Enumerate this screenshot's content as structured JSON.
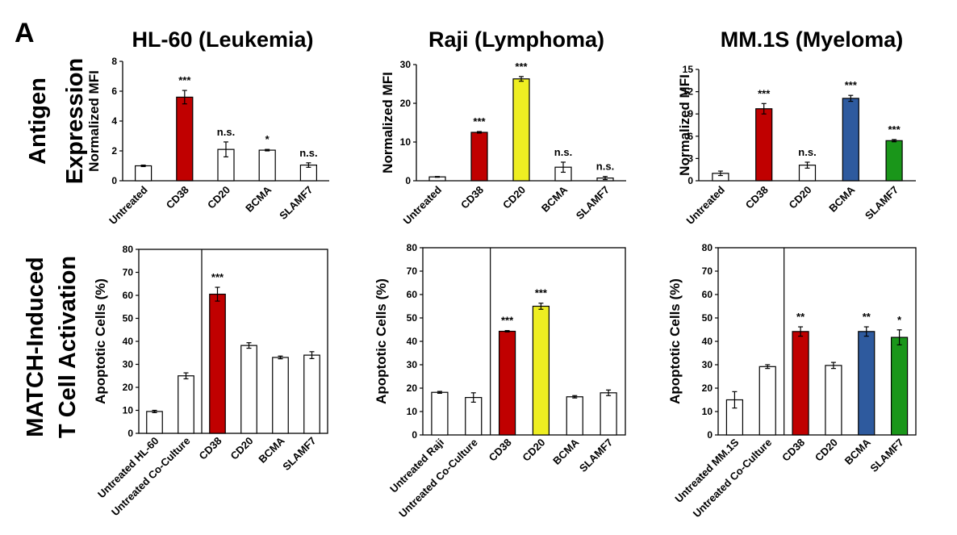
{
  "panel_label": "A",
  "row_labels": {
    "top": [
      "Antigen",
      "Expression"
    ],
    "bottom": [
      "MATCH-Induced",
      "T Cell Activation"
    ]
  },
  "column_titles": [
    "HL-60 (Leukemia)",
    "Raji (Lymphoma)",
    "MM.1S (Myeloma)"
  ],
  "colors": {
    "white": "#ffffff",
    "red": "#c00000",
    "yellow": "#eeee22",
    "blue": "#2e5a9e",
    "green": "#1a961a",
    "axis": "#000000"
  },
  "chart_data": [
    {
      "type": "bar",
      "title": "HL-60 (Leukemia)",
      "ylabel": "Normalized MFI",
      "ylim": [
        0,
        8
      ],
      "yticks": [
        0,
        2,
        4,
        6,
        8
      ],
      "categories": [
        "Untreated",
        "CD38",
        "CD20",
        "BCMA",
        "SLAMF7"
      ],
      "values": [
        1.0,
        5.6,
        2.1,
        2.05,
        1.05
      ],
      "errors": [
        0.05,
        0.45,
        0.5,
        0.05,
        0.15
      ],
      "significance": [
        "",
        "***",
        "n.s.",
        "*",
        "n.s."
      ],
      "bar_colors": [
        "white",
        "red",
        "white",
        "white",
        "white"
      ],
      "divider_after": null
    },
    {
      "type": "bar",
      "title": "Raji (Lymphoma)",
      "ylabel": "Normalized MFI",
      "ylim": [
        0,
        30
      ],
      "yticks": [
        0,
        10,
        20,
        30
      ],
      "categories": [
        "Untreated",
        "CD38",
        "CD20",
        "BCMA",
        "SLAMF7"
      ],
      "values": [
        1.0,
        12.5,
        26.3,
        3.5,
        0.7
      ],
      "errors": [
        0.1,
        0.2,
        0.6,
        1.3,
        0.4
      ],
      "significance": [
        "",
        "***",
        "***",
        "n.s.",
        "n.s."
      ],
      "bar_colors": [
        "white",
        "red",
        "yellow",
        "white",
        "white"
      ],
      "divider_after": null
    },
    {
      "type": "bar",
      "title": "MM.1S (Myeloma)",
      "ylabel": "Normalized MFI",
      "ylim": [
        0,
        15
      ],
      "yticks": [
        0,
        3,
        6,
        9,
        12,
        15
      ],
      "categories": [
        "Untreated",
        "CD38",
        "CD20",
        "BCMA",
        "SLAMF7"
      ],
      "values": [
        1.0,
        9.7,
        2.1,
        11.1,
        5.4
      ],
      "errors": [
        0.3,
        0.7,
        0.4,
        0.4,
        0.15
      ],
      "significance": [
        "",
        "***",
        "n.s.",
        "***",
        "***"
      ],
      "bar_colors": [
        "white",
        "red",
        "white",
        "blue",
        "green"
      ],
      "divider_after": null
    },
    {
      "type": "bar",
      "title": "",
      "ylabel": "Apoptotic Cells (%)",
      "ylim": [
        0,
        80
      ],
      "yticks": [
        0,
        10,
        20,
        30,
        40,
        50,
        60,
        70,
        80
      ],
      "categories": [
        "Untreated HL-60",
        "Untreated Co-Culture",
        "CD38",
        "CD20",
        "BCMA",
        "SLAMF7"
      ],
      "values": [
        9.5,
        25.0,
        60.5,
        38.2,
        33.0,
        34.0
      ],
      "errors": [
        0.5,
        1.3,
        3.0,
        1.2,
        0.6,
        1.5
      ],
      "significance": [
        "",
        "",
        "***",
        "",
        "",
        ""
      ],
      "bar_colors": [
        "white",
        "white",
        "red",
        "white",
        "white",
        "white"
      ],
      "divider_after": 1
    },
    {
      "type": "bar",
      "title": "",
      "ylabel": "Apoptotic Cells (%)",
      "ylim": [
        0,
        80
      ],
      "yticks": [
        0,
        10,
        20,
        30,
        40,
        50,
        60,
        70,
        80
      ],
      "categories": [
        "Untreated Raji",
        "Untreated Co-Culture",
        "CD38",
        "CD20",
        "BCMA",
        "SLAMF7"
      ],
      "values": [
        18.2,
        16.0,
        44.3,
        55.0,
        16.3,
        18.0
      ],
      "errors": [
        0.4,
        2.0,
        0.3,
        1.3,
        0.5,
        1.2
      ],
      "significance": [
        "",
        "",
        "***",
        "***",
        "",
        ""
      ],
      "bar_colors": [
        "white",
        "white",
        "red",
        "yellow",
        "white",
        "white"
      ],
      "divider_after": 1
    },
    {
      "type": "bar",
      "title": "",
      "ylabel": "Apoptotic Cells (%)",
      "ylim": [
        0,
        80
      ],
      "yticks": [
        0,
        10,
        20,
        30,
        40,
        50,
        60,
        70,
        80
      ],
      "categories": [
        "Untreated MM.1S",
        "Untreated Co-Culture",
        "CD38",
        "CD20",
        "BCMA",
        "SLAMF7"
      ],
      "values": [
        15.0,
        29.2,
        44.2,
        29.7,
        44.2,
        41.7
      ],
      "errors": [
        3.5,
        0.8,
        2.0,
        1.3,
        2.0,
        3.2
      ],
      "significance": [
        "",
        "",
        "**",
        "",
        "**",
        "*"
      ],
      "bar_colors": [
        "white",
        "white",
        "red",
        "white",
        "blue",
        "green"
      ],
      "divider_after": 1
    }
  ]
}
